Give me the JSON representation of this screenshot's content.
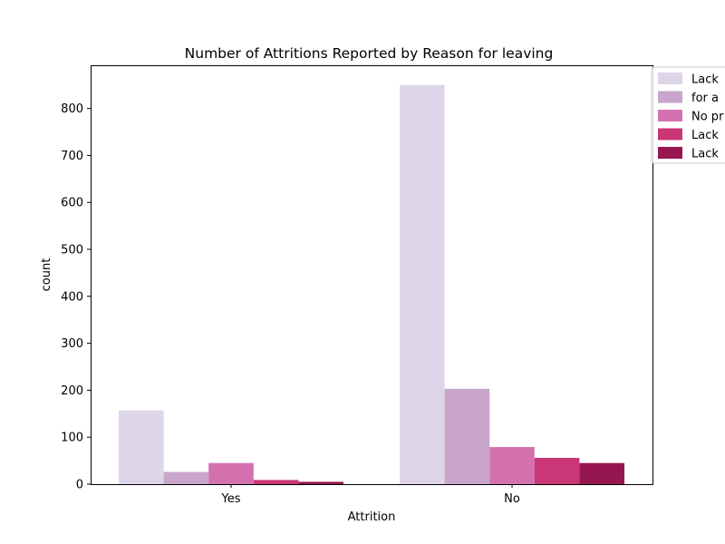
{
  "chart_data": {
    "type": "bar",
    "title": "Number of Attritions Reported by Reason for leaving",
    "xlabel": "Attrition",
    "ylabel": "count",
    "categories": [
      "Yes",
      "No"
    ],
    "ylim": [
      0,
      892
    ],
    "yticks": [
      0,
      100,
      200,
      300,
      400,
      500,
      600,
      700,
      800
    ],
    "series": [
      {
        "name": "Lack",
        "color": "#dfd5e8",
        "values": [
          157,
          850
        ]
      },
      {
        "name": "for a",
        "color": "#c9a5cb",
        "values": [
          26,
          203
        ]
      },
      {
        "name": "No pr",
        "color": "#d371af",
        "values": [
          45,
          79
        ]
      },
      {
        "name": "Lack",
        "color": "#cb3677",
        "values": [
          9,
          56
        ]
      },
      {
        "name": "Lack",
        "color": "#961650",
        "values": [
          5,
          45
        ]
      }
    ],
    "legend_position": "outside top-right, clipped",
    "grid": false
  }
}
